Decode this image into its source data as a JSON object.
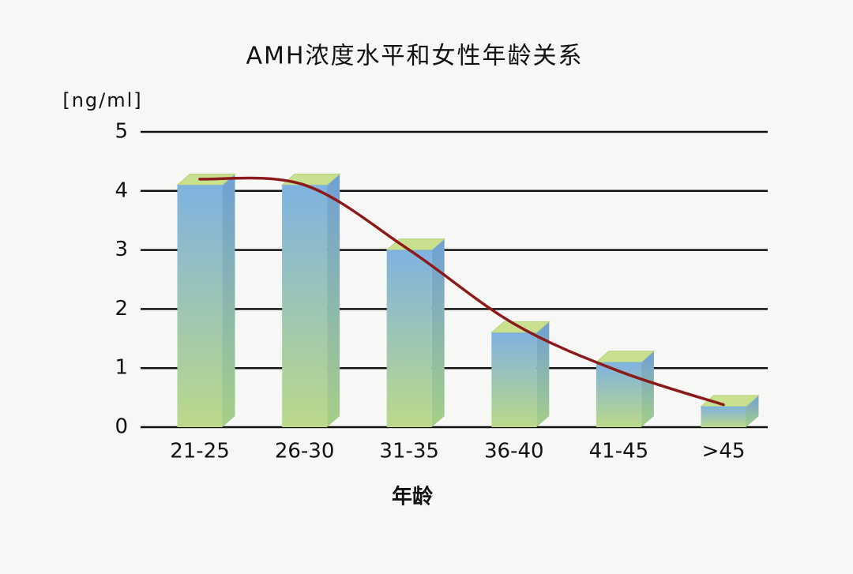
{
  "chart_data": {
    "type": "bar",
    "title": "AMH浓度水平和女性年龄关系",
    "y_label": "[ng/ml]",
    "x_label": "年龄",
    "categories": [
      "21-25",
      "26-30",
      "31-35",
      "36-40",
      "41-45",
      ">45"
    ],
    "series": [
      {
        "type": "bar",
        "color": "#8fb9d8",
        "values": [
          4.1,
          4.1,
          3.0,
          1.6,
          1.1,
          0.35
        ]
      },
      {
        "type": "line",
        "color": "#8b1a1a",
        "values": [
          4.2,
          4.1,
          3.0,
          1.75,
          0.95,
          0.38
        ]
      }
    ],
    "ylim": [
      0,
      5
    ],
    "yticks": [
      0,
      1,
      2,
      3,
      4,
      5
    ],
    "grid": true
  }
}
